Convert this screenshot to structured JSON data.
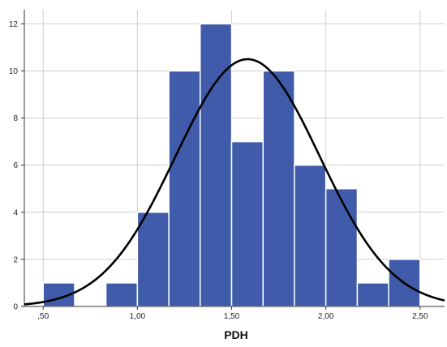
{
  "chart_data": {
    "type": "bar",
    "title": "",
    "xlabel": "PDH",
    "ylabel": "",
    "xlim": [
      0.4,
      2.63
    ],
    "ylim": [
      0,
      12.6
    ],
    "grid": true,
    "x_ticks": [
      0.5,
      1.0,
      1.5,
      2.0,
      2.5
    ],
    "x_tick_labels": [
      ",50",
      "1,00",
      "1,50",
      "2,00",
      "2,50"
    ],
    "y_ticks": [
      0,
      2,
      4,
      6,
      8,
      10,
      12
    ],
    "y_tick_labels": [
      "0",
      "2",
      "4",
      "6",
      "8",
      "10",
      "12"
    ],
    "bin_width": 0.167,
    "bins": [
      {
        "start": 0.5,
        "value": 1
      },
      {
        "start": 0.667,
        "value": 0
      },
      {
        "start": 0.833,
        "value": 1
      },
      {
        "start": 1.0,
        "value": 4
      },
      {
        "start": 1.167,
        "value": 10
      },
      {
        "start": 1.333,
        "value": 12
      },
      {
        "start": 1.5,
        "value": 7
      },
      {
        "start": 1.667,
        "value": 10
      },
      {
        "start": 1.833,
        "value": 6
      },
      {
        "start": 2.0,
        "value": 5
      },
      {
        "start": 2.167,
        "value": 1
      },
      {
        "start": 2.333,
        "value": 2
      }
    ],
    "normal_curve": {
      "mean": 1.585,
      "sd": 0.383,
      "peak": 10.5
    },
    "colors": {
      "bar_fill": "#3f5ba9",
      "bar_stroke": "#ffffff",
      "curve": "#000000",
      "grid": "#cfcfcf"
    }
  }
}
